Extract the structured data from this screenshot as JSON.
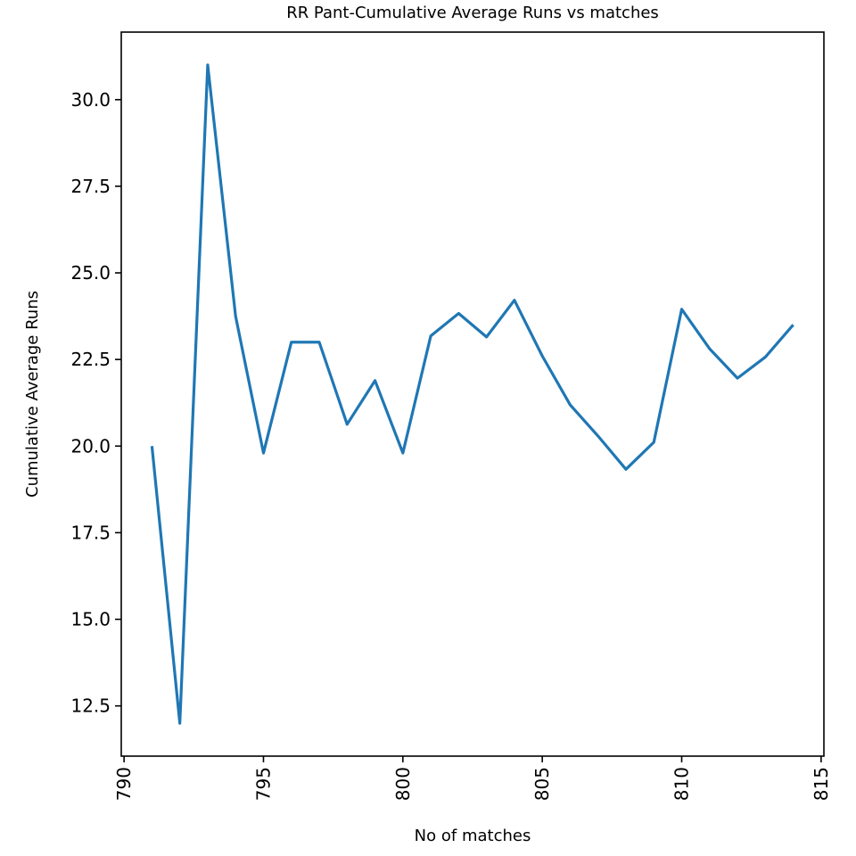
{
  "chart_data": {
    "type": "line",
    "title": "RR Pant-Cumulative Average Runs vs matches",
    "xlabel": "No of matches",
    "ylabel": "Cumulative Average Runs",
    "xlim": [
      789.9,
      815.1
    ],
    "ylim": [
      11.05,
      31.95
    ],
    "xticks": [
      790,
      795,
      800,
      805,
      810,
      815
    ],
    "yticks": [
      12.5,
      15.0,
      17.5,
      20.0,
      22.5,
      25.0,
      27.5,
      30.0
    ],
    "grid": false,
    "series": [
      {
        "color": "#1f77b4",
        "x": [
          791,
          792,
          793,
          794,
          795,
          796,
          797,
          798,
          799,
          800,
          801,
          802,
          803,
          804,
          805,
          806,
          807,
          808,
          809,
          810,
          811,
          812,
          813,
          814
        ],
        "y": [
          20.0,
          12.0,
          31.0,
          23.75,
          19.8,
          23.0,
          23.0,
          20.63,
          21.89,
          19.8,
          23.18,
          23.83,
          23.15,
          24.21,
          22.6,
          21.19,
          20.29,
          19.33,
          20.11,
          23.95,
          22.81,
          21.96,
          22.57,
          23.5
        ]
      }
    ]
  }
}
